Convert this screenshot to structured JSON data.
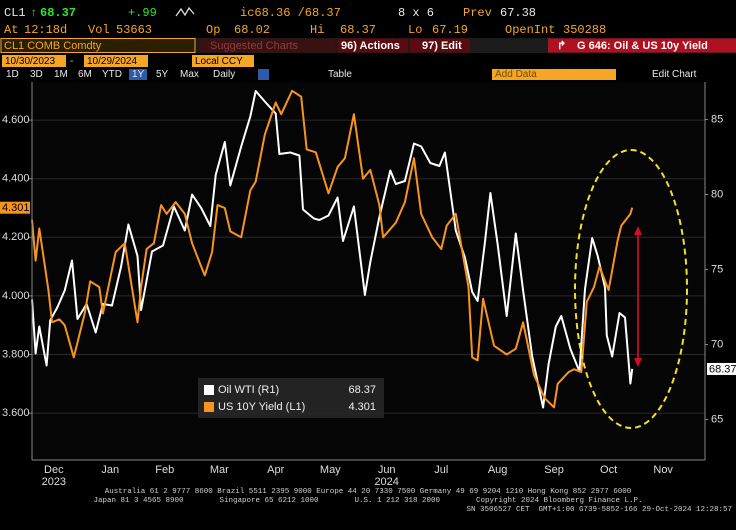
{
  "header": {
    "ticker": "CL1",
    "last": "68.37",
    "change": "+.99",
    "bid_ask": "ic68.36 /68.37",
    "size": "8 x 6",
    "prev_label": "Prev",
    "prev": "67.38",
    "at_label": "At",
    "time": "12:18d",
    "vol_label": "Vol",
    "vol": "53663",
    "op_label": "Op",
    "op": "68.02",
    "hi_label": "Hi",
    "hi": "68.37",
    "lo_label": "Lo",
    "lo": "67.19",
    "oi_label": "OpenInt",
    "oi": "350288"
  },
  "toolbar": {
    "security": "CL1 COMB Comdty",
    "suggested": "Suggested Charts",
    "actions": "96) Actions",
    "edit": "97) Edit",
    "chart_title": "G 646: Oil & US 10y Yield",
    "start_date": "10/30/2023",
    "end_date": "10/29/2024",
    "currency": "Local CCY",
    "periods": [
      "1D",
      "3D",
      "1M",
      "6M",
      "YTD",
      "1Y",
      "5Y",
      "Max"
    ],
    "selected_period": "1Y",
    "frequency": "Daily",
    "table": "Table",
    "add_data": "Add Data",
    "edit_chart": "Edit Chart"
  },
  "chart_data": {
    "type": "line",
    "xlim": [
      "2023-12-04",
      "2024-12-08"
    ],
    "xticks": [
      {
        "value": "2023-12-16",
        "label": "Dec",
        "sublabel": "2023"
      },
      {
        "value": "2024-01-16",
        "label": "Jan"
      },
      {
        "value": "2024-02-15",
        "label": "Feb"
      },
      {
        "value": "2024-03-16",
        "label": "Mar"
      },
      {
        "value": "2024-04-16",
        "label": "Apr"
      },
      {
        "value": "2024-05-16",
        "label": "May"
      },
      {
        "value": "2024-06-16",
        "label": "Jun",
        "sublabel": "2024"
      },
      {
        "value": "2024-07-16",
        "label": "Jul"
      },
      {
        "value": "2024-08-16",
        "label": "Aug"
      },
      {
        "value": "2024-09-16",
        "label": "Sep"
      },
      {
        "value": "2024-10-16",
        "label": "Oct"
      },
      {
        "value": "2024-11-15",
        "label": "Nov"
      }
    ],
    "ylim": [
      3.44,
      4.73
    ],
    "yticks": [
      {
        "value": 3.6,
        "label": "3.600"
      },
      {
        "value": 3.8,
        "label": "3.800"
      },
      {
        "value": 4.0,
        "label": "4.000"
      },
      {
        "value": 4.2,
        "label": "4.200"
      },
      {
        "value": 4.4,
        "label": "4.400"
      },
      {
        "value": 4.6,
        "label": "4.600"
      }
    ],
    "y2lim": [
      62.3,
      87.5
    ],
    "y2ticks": [
      65,
      70,
      75,
      80,
      85
    ],
    "grid": true,
    "series": [
      {
        "name": "Oil WTI (R1)",
        "color": "#ffffff",
        "axis": "y2",
        "last_label": "68.37",
        "x": [
          "2023-12-04",
          "2023-12-06",
          "2023-12-08",
          "2023-12-12",
          "2023-12-14",
          "2023-12-18",
          "2023-12-22",
          "2023-12-26",
          "2023-12-29",
          "2024-01-03",
          "2024-01-08",
          "2024-01-12",
          "2024-01-17",
          "2024-01-22",
          "2024-01-26",
          "2024-01-31",
          "2024-02-02",
          "2024-02-08",
          "2024-02-14",
          "2024-02-20",
          "2024-02-26",
          "2024-03-01",
          "2024-03-06",
          "2024-03-11",
          "2024-03-14",
          "2024-03-19",
          "2024-03-22",
          "2024-03-28",
          "2024-04-02",
          "2024-04-05",
          "2024-04-10",
          "2024-04-16",
          "2024-04-18",
          "2024-04-24",
          "2024-04-29",
          "2024-05-01",
          "2024-05-07",
          "2024-05-10",
          "2024-05-15",
          "2024-05-20",
          "2024-05-23",
          "2024-05-29",
          "2024-06-04",
          "2024-06-07",
          "2024-06-12",
          "2024-06-18",
          "2024-06-21",
          "2024-06-26",
          "2024-07-01",
          "2024-07-05",
          "2024-07-10",
          "2024-07-15",
          "2024-07-18",
          "2024-07-24",
          "2024-07-29",
          "2024-08-02",
          "2024-08-05",
          "2024-08-09",
          "2024-08-12",
          "2024-08-16",
          "2024-08-21",
          "2024-08-26",
          "2024-08-30",
          "2024-09-04",
          "2024-09-10",
          "2024-09-13",
          "2024-09-17",
          "2024-09-20",
          "2024-09-25",
          "2024-09-30",
          "2024-10-03",
          "2024-10-07",
          "2024-10-10",
          "2024-10-14",
          "2024-10-15",
          "2024-10-18",
          "2024-10-22",
          "2024-10-25",
          "2024-10-28",
          "2024-10-29"
        ],
        "values": [
          73.0,
          69.4,
          71.2,
          68.6,
          71.6,
          72.5,
          73.6,
          75.6,
          71.7,
          72.7,
          70.8,
          72.7,
          72.6,
          75.2,
          78.0,
          75.9,
          72.3,
          76.2,
          76.6,
          79.2,
          77.6,
          80.0,
          79.1,
          77.9,
          81.3,
          83.5,
          80.6,
          83.2,
          85.2,
          86.9,
          86.2,
          85.4,
          82.7,
          82.8,
          82.6,
          79.0,
          78.4,
          78.3,
          78.6,
          79.8,
          76.9,
          79.2,
          73.3,
          75.5,
          78.5,
          81.6,
          80.7,
          80.9,
          83.4,
          83.2,
          82.1,
          81.9,
          82.8,
          77.6,
          75.8,
          73.5,
          72.9,
          76.8,
          80.1,
          76.7,
          71.9,
          77.4,
          73.6,
          69.2,
          65.8,
          68.7,
          71.2,
          71.9,
          69.7,
          68.2,
          73.7,
          77.1,
          75.9,
          73.8,
          70.6,
          69.2,
          72.1,
          71.8,
          67.4,
          68.37
        ]
      },
      {
        "name": "US 10Y Yield (L1)",
        "color": "#f7941d",
        "axis": "y",
        "last_label": "4.301",
        "x": [
          "2023-12-04",
          "2023-12-06",
          "2023-12-08",
          "2023-12-13",
          "2023-12-15",
          "2023-12-19",
          "2023-12-22",
          "2023-12-27",
          "2024-01-02",
          "2024-01-05",
          "2024-01-10",
          "2024-01-12",
          "2024-01-16",
          "2024-01-19",
          "2024-01-24",
          "2024-01-31",
          "2024-02-02",
          "2024-02-05",
          "2024-02-09",
          "2024-02-13",
          "2024-02-16",
          "2024-02-21",
          "2024-02-26",
          "2024-03-01",
          "2024-03-06",
          "2024-03-08",
          "2024-03-12",
          "2024-03-15",
          "2024-03-19",
          "2024-03-22",
          "2024-03-28",
          "2024-04-02",
          "2024-04-05",
          "2024-04-10",
          "2024-04-16",
          "2024-04-19",
          "2024-04-25",
          "2024-04-30",
          "2024-05-03",
          "2024-05-08",
          "2024-05-15",
          "2024-05-20",
          "2024-05-24",
          "2024-05-29",
          "2024-06-03",
          "2024-06-07",
          "2024-06-12",
          "2024-06-14",
          "2024-06-21",
          "2024-06-26",
          "2024-07-01",
          "2024-07-05",
          "2024-07-11",
          "2024-07-16",
          "2024-07-19",
          "2024-07-24",
          "2024-07-31",
          "2024-08-02",
          "2024-08-05",
          "2024-08-08",
          "2024-08-14",
          "2024-08-21",
          "2024-08-26",
          "2024-08-30",
          "2024-09-05",
          "2024-09-11",
          "2024-09-16",
          "2024-09-18",
          "2024-09-24",
          "2024-09-27",
          "2024-10-01",
          "2024-10-04",
          "2024-10-08",
          "2024-10-11",
          "2024-10-16",
          "2024-10-21",
          "2024-10-23",
          "2024-10-28",
          "2024-10-29"
        ],
        "values": [
          4.26,
          4.12,
          4.23,
          4.02,
          3.91,
          3.92,
          3.9,
          3.79,
          3.94,
          4.05,
          4.03,
          3.94,
          4.06,
          4.15,
          4.18,
          3.91,
          4.03,
          4.16,
          4.18,
          4.31,
          4.28,
          4.32,
          4.28,
          4.18,
          4.1,
          4.07,
          4.15,
          4.31,
          4.3,
          4.22,
          4.2,
          4.36,
          4.39,
          4.55,
          4.66,
          4.62,
          4.7,
          4.68,
          4.5,
          4.49,
          4.35,
          4.44,
          4.47,
          4.62,
          4.4,
          4.43,
          4.31,
          4.2,
          4.25,
          4.32,
          4.47,
          4.28,
          4.2,
          4.16,
          4.24,
          4.28,
          4.03,
          3.79,
          3.78,
          3.99,
          3.83,
          3.8,
          3.82,
          3.91,
          3.73,
          3.65,
          3.62,
          3.7,
          3.74,
          3.75,
          3.74,
          3.98,
          4.03,
          4.1,
          4.02,
          4.19,
          4.24,
          4.28,
          4.301
        ]
      }
    ]
  },
  "footer": [
    "Australia 61 2 9777 8600 Brazil 5511 2395 9000 Europe 44 20 7330 7500 Germany 49 69 9204 1210 Hong Kong 852 2977 6000",
    "Japan 81 3 4565 8900        Singapore 65 6212 1000        U.S. 1 212 318 2000        Copyright 2024 Bloomberg Finance L.P.",
    "SN 3506527 CET  GMT+1:00 G739-5852-166 29-Oct-2024 12:28:57"
  ]
}
